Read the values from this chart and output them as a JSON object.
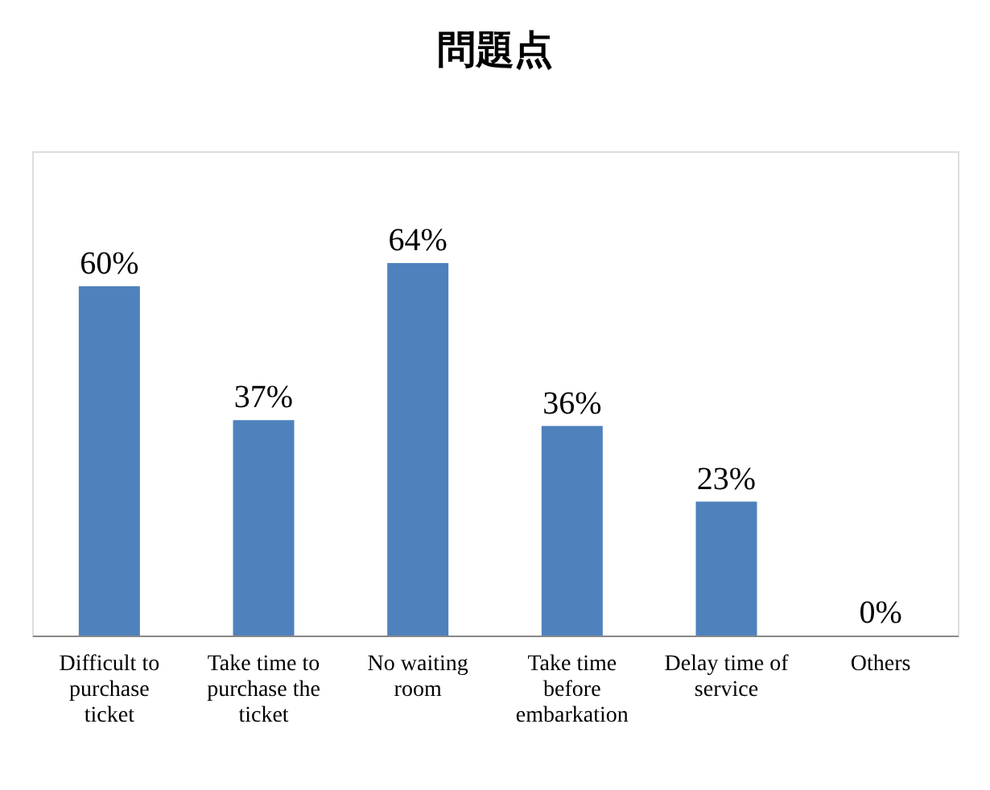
{
  "chart_data": {
    "type": "bar",
    "title": "問題点",
    "categories": [
      "Difficult to purchase ticket",
      "Take time to purchase the ticket",
      "No waiting room",
      "Take time before embarkation",
      "Delay time of service",
      "Others"
    ],
    "values": [
      60,
      37,
      64,
      36,
      23,
      0
    ],
    "value_labels": [
      "60%",
      "37%",
      "64%",
      "36%",
      "23%",
      "0%"
    ],
    "color": "#4f81bd",
    "grid": false
  }
}
